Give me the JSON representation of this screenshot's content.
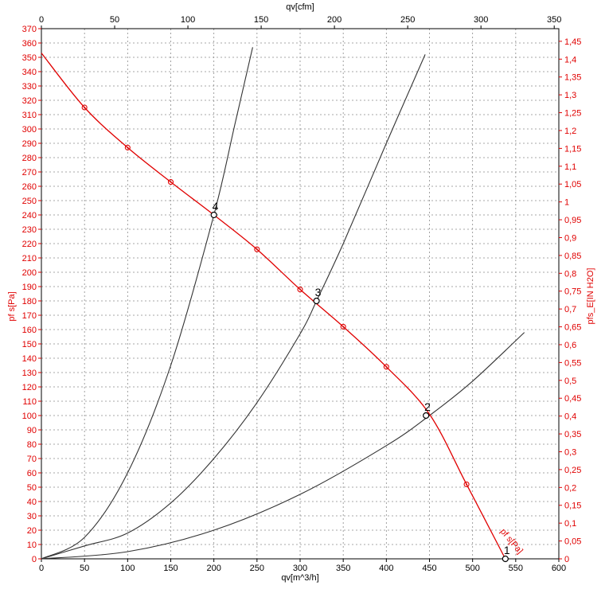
{
  "chart_data": {
    "type": "line",
    "title": "",
    "xlabel_bottom": "qv[m^3/h]",
    "xlabel_top": "qv[cfm]",
    "ylabel_left": "pf s[Pa]",
    "ylabel_right": "pfs_E[IN H2O]",
    "curve_label": "pf s[Pa]",
    "xlim": [
      0,
      600
    ],
    "ylim": [
      0,
      370
    ],
    "x_ticks_bottom": [
      "0",
      "50",
      "100",
      "150",
      "200",
      "250",
      "300",
      "350",
      "400",
      "450",
      "500",
      "550",
      "600"
    ],
    "x_ticks_top": [
      "0",
      "50",
      "100",
      "150",
      "200",
      "250",
      "300",
      "350"
    ],
    "y_ticks_left": [
      "0",
      "10",
      "20",
      "30",
      "40",
      "50",
      "60",
      "70",
      "80",
      "90",
      "100",
      "110",
      "120",
      "130",
      "140",
      "150",
      "160",
      "170",
      "180",
      "190",
      "200",
      "210",
      "220",
      "230",
      "240",
      "250",
      "260",
      "270",
      "280",
      "290",
      "300",
      "310",
      "320",
      "330",
      "340",
      "350",
      "360",
      "370"
    ],
    "y_ticks_right": [
      "0",
      "0,05",
      "0,1",
      "0,15",
      "0,2",
      "0,25",
      "0,3",
      "0,35",
      "0,4",
      "0,45",
      "0,5",
      "0,55",
      "0,6",
      "0,65",
      "0,7",
      "0,75",
      "0,8",
      "0,85",
      "0,9",
      "0,95",
      "1",
      "1,05",
      "1,1",
      "1,15",
      "1,2",
      "1,25",
      "1,3",
      "1,35",
      "1,4",
      "1,45"
    ],
    "grid": true,
    "fan_curve": {
      "name": "pf s[Pa]",
      "color": "#e00000",
      "x": [
        0,
        50,
        100,
        150,
        200,
        250,
        300,
        350,
        400,
        450,
        493,
        538
      ],
      "y": [
        353,
        315,
        287,
        263,
        240,
        216,
        188,
        162,
        134,
        101,
        52,
        0
      ]
    },
    "fan_markers": {
      "x": [
        50,
        100,
        150,
        250,
        300,
        350,
        400,
        493
      ],
      "y": [
        315,
        287,
        263,
        216,
        188,
        162,
        134,
        52
      ]
    },
    "system_curves": [
      {
        "x": [
          0,
          100,
          200,
          300,
          400,
          450,
          500,
          560
        ],
        "y": [
          0,
          5,
          20,
          45,
          79,
          100,
          124,
          158
        ]
      },
      {
        "x": [
          0,
          50,
          100,
          150,
          200,
          250,
          300,
          319,
          350,
          400,
          445
        ],
        "y": [
          0,
          9,
          18,
          39,
          70,
          109,
          157,
          180,
          220,
          290,
          352
        ]
      },
      {
        "x": [
          0,
          50,
          100,
          150,
          200,
          225,
          245
        ],
        "y": [
          0,
          15,
          60,
          135,
          240,
          305,
          357
        ]
      }
    ],
    "operating_points": [
      {
        "label": "1",
        "x": 538,
        "y": 0
      },
      {
        "label": "2",
        "x": 446,
        "y": 100
      },
      {
        "label": "3",
        "x": 319,
        "y": 180
      },
      {
        "label": "4",
        "x": 200,
        "y": 240
      }
    ],
    "line_color_system": "#333333"
  }
}
